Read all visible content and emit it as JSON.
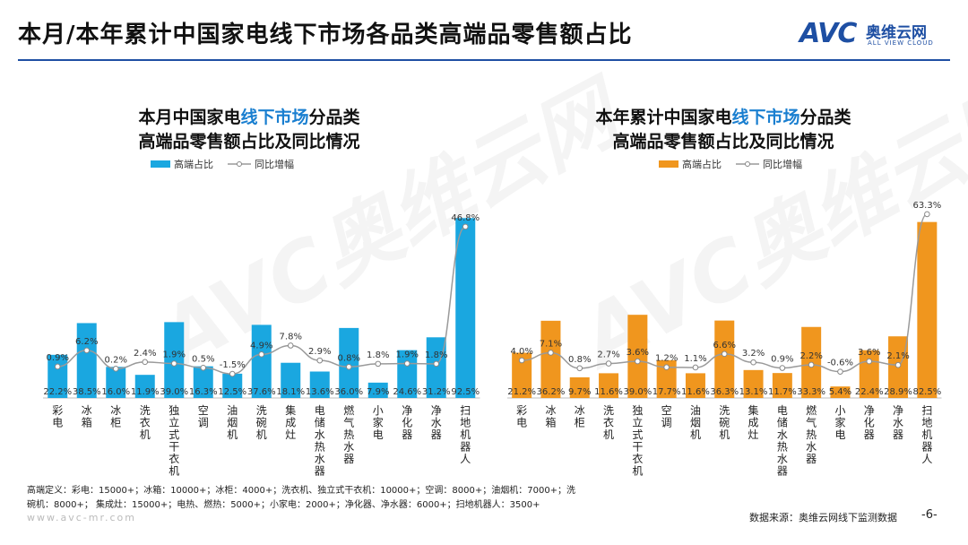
{
  "page": {
    "title": "本月/本年累计中国家电线下市场各品类高端品零售额占比",
    "logo_text": "AVC",
    "logo_cn": "奥维云网",
    "logo_en": "ALL VIEW CLOUD",
    "watermark": "AVC奥维云网",
    "footnote_line1": "高端定义：彩电：15000+；冰箱：10000+；冰柜：4000+；洗衣机、独立式干衣机：10000+；空调：8000+；油烟机：7000+；洗",
    "footnote_line2": "碗机：8000+；     集成灶：15000+；电热、燃热：5000+；小家电：2000+；净化器、净水器：6000+；扫地机器人：3500+",
    "site": "www.avc-mr.com",
    "source": "数据来源：奥维云网线下监测数据",
    "page_number": "-6-"
  },
  "chart_data": [
    {
      "type": "bar",
      "title_line1_pre": "本月中国家电",
      "title_line1_hl": "线下市场",
      "title_line1_post": "分品类",
      "title_line2": "高端品零售额占比及同比情况",
      "legend_bar": "高端占比",
      "legend_line": "同比增幅",
      "bar_color": "#1aa7e0",
      "categories": [
        "彩电",
        "冰箱",
        "冰柜",
        "洗衣机",
        "独立式干衣机",
        "空调",
        "油烟机",
        "洗碗机",
        "集成灶",
        "电储水热水器",
        "燃气热水器",
        "小家电",
        "净化器",
        "净水器",
        "扫地机器人"
      ],
      "series": [
        {
          "name": "高端占比",
          "type": "bar",
          "values": [
            22.2,
            38.5,
            16.0,
            11.9,
            39.0,
            16.3,
            12.5,
            37.6,
            18.1,
            13.6,
            36.0,
            7.9,
            24.6,
            31.2,
            92.5
          ],
          "labels": [
            "22.2%",
            "38.5%",
            "16.0%",
            "11.9%",
            "39.0%",
            "16.3%",
            "12.5%",
            "37.6%",
            "18.1%",
            "13.6%",
            "36.0%",
            "7.9%",
            "24.6%",
            "31.2%",
            "92.5%"
          ]
        },
        {
          "name": "同比增幅",
          "type": "line",
          "values": [
            0.9,
            6.2,
            0.2,
            2.4,
            1.9,
            0.5,
            -1.5,
            4.9,
            7.8,
            2.9,
            0.8,
            1.8,
            1.9,
            1.8,
            46.8
          ],
          "labels": [
            "0.9%",
            "6.2%",
            "0.2%",
            "2.4%",
            "1.9%",
            "0.5%",
            "-1.5%",
            "4.9%",
            "7.8%",
            "2.9%",
            "0.8%",
            "1.8%",
            "1.9%",
            "1.8%",
            "46.8%"
          ]
        }
      ]
    },
    {
      "type": "bar",
      "title_line1_pre": "本年累计中国家电",
      "title_line1_hl": "线下市场",
      "title_line1_post": "分品类",
      "title_line2": "高端品零售额占比及同比情况",
      "legend_bar": "高端占比",
      "legend_line": "同比增幅",
      "bar_color": "#f0961e",
      "categories": [
        "彩电",
        "冰箱",
        "冰柜",
        "洗衣机",
        "独立式干衣机",
        "空调",
        "油烟机",
        "洗碗机",
        "集成灶",
        "电储水热水器",
        "燃气热水器",
        "小家电",
        "净化器",
        "净水器",
        "扫地机器人"
      ],
      "series": [
        {
          "name": "高端占比",
          "type": "bar",
          "values": [
            21.2,
            36.2,
            9.7,
            11.6,
            39.0,
            17.7,
            11.6,
            36.3,
            13.1,
            11.7,
            33.3,
            5.4,
            22.4,
            28.9,
            82.5
          ],
          "labels": [
            "21.2%",
            "36.2%",
            "9.7%",
            "11.6%",
            "39.0%",
            "17.7%",
            "11.6%",
            "36.3%",
            "13.1%",
            "11.7%",
            "33.3%",
            "5.4%",
            "22.4%",
            "28.9%",
            "82.5%"
          ]
        },
        {
          "name": "同比增幅",
          "type": "line",
          "values": [
            4.0,
            7.1,
            0.8,
            2.7,
            3.6,
            1.2,
            1.1,
            6.6,
            3.2,
            0.9,
            2.2,
            -0.6,
            3.6,
            2.1,
            63.3
          ],
          "labels": [
            "4.0%",
            "7.1%",
            "0.8%",
            "2.7%",
            "3.6%",
            "1.2%",
            "1.1%",
            "6.6%",
            "3.2%",
            "0.9%",
            "2.2%",
            "-0.6%",
            "3.6%",
            "2.1%",
            "63.3%"
          ]
        }
      ]
    }
  ]
}
